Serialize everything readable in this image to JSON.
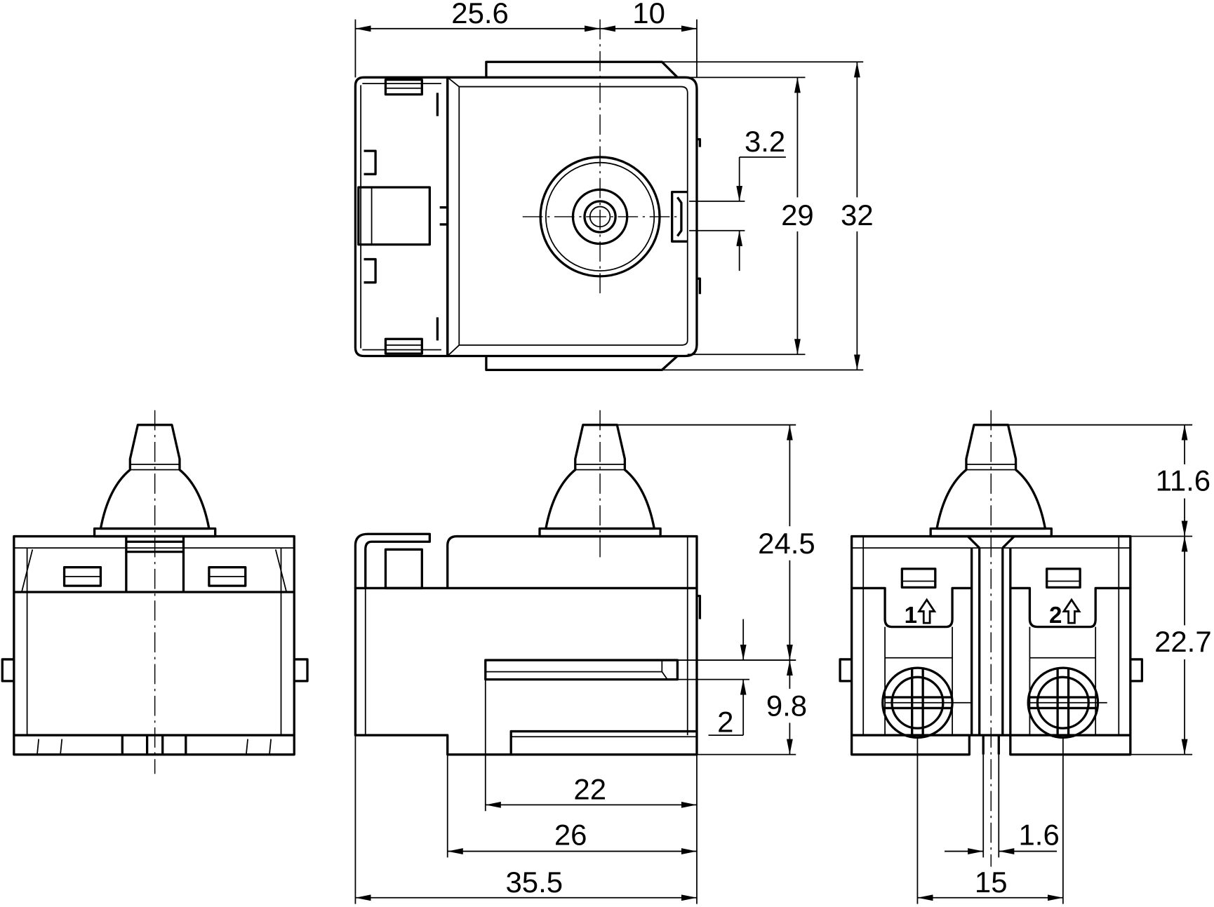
{
  "drawing": {
    "top_view": {
      "dims": {
        "width_left": "25.6",
        "width_right": "10",
        "tab_offset": "3.2",
        "inner_height": "29",
        "outer_height": "32"
      }
    },
    "side_view": {
      "dims": {
        "height_to_slot": "24.5",
        "slot_to_bottom": "9.8",
        "slot_width": "2",
        "slot_length": "22",
        "base_length": "26",
        "total_length": "35.5"
      }
    },
    "terminal_view": {
      "dims": {
        "actuator_height": "11.6",
        "body_height": "22.7",
        "pin_width": "1.6",
        "terminal_pitch": "15"
      },
      "terminals": [
        {
          "label": "1",
          "icon": "up-arrow-icon"
        },
        {
          "label": "2",
          "icon": "up-arrow-icon"
        }
      ]
    }
  }
}
